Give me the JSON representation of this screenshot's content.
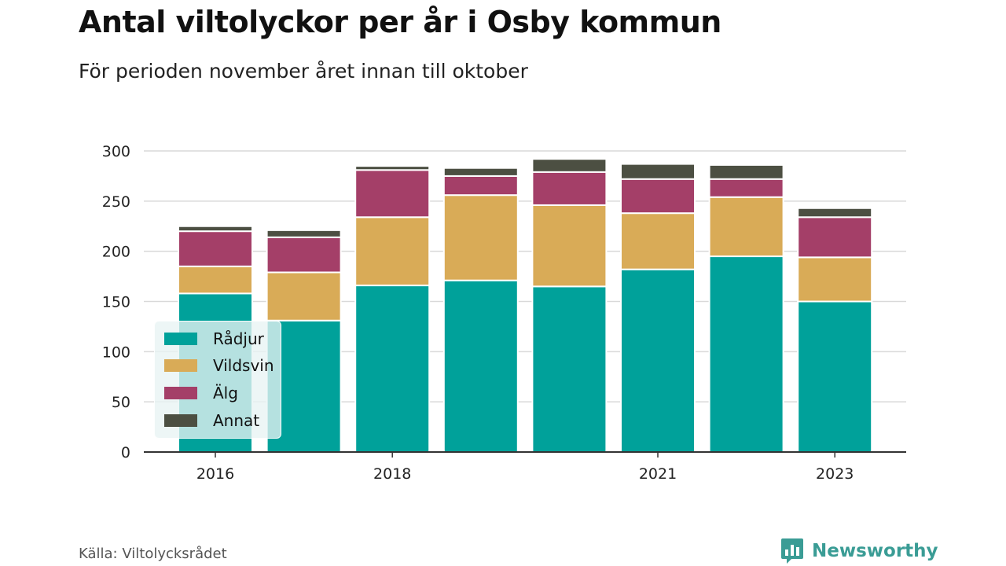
{
  "title": "Antal viltolyckor per år i Osby kommun",
  "subtitle": "För perioden november året innan till oktober",
  "source": "Källa: Viltolycksrådet",
  "brand": "Newsworthy",
  "colors": {
    "radjur": "#00a19a",
    "vildsvin": "#d9ab57",
    "alg": "#a43f68",
    "annat": "#4c4f42",
    "grid": "#d9d9d9",
    "axis": "#333333",
    "brand": "#3a9c95"
  },
  "chart_data": {
    "type": "bar",
    "stacked": true,
    "x": [
      2016,
      2017,
      2018,
      2019,
      2020,
      2021,
      2022,
      2023
    ],
    "x_tick_labels": [
      {
        "value": 2016,
        "label": "2016"
      },
      {
        "value": 2018,
        "label": "2018"
      },
      {
        "value": 2021,
        "label": "2021"
      },
      {
        "value": 2023,
        "label": "2023"
      }
    ],
    "y_ticks": [
      0,
      50,
      100,
      150,
      200,
      250,
      300
    ],
    "ylim": [
      0,
      300
    ],
    "grid": true,
    "legend_position": "bottom-left",
    "series": [
      {
        "name": "Rådjur",
        "color_key": "radjur",
        "values": [
          158,
          131,
          166,
          171,
          165,
          182,
          195,
          150
        ]
      },
      {
        "name": "Vildsvin",
        "color_key": "vildsvin",
        "values": [
          27,
          48,
          68,
          85,
          81,
          56,
          59,
          44
        ]
      },
      {
        "name": "Älg",
        "color_key": "alg",
        "values": [
          35,
          35,
          47,
          19,
          33,
          34,
          18,
          40
        ]
      },
      {
        "name": "Annat",
        "color_key": "annat",
        "values": [
          5,
          7,
          4,
          8,
          13,
          15,
          14,
          9
        ]
      }
    ]
  }
}
